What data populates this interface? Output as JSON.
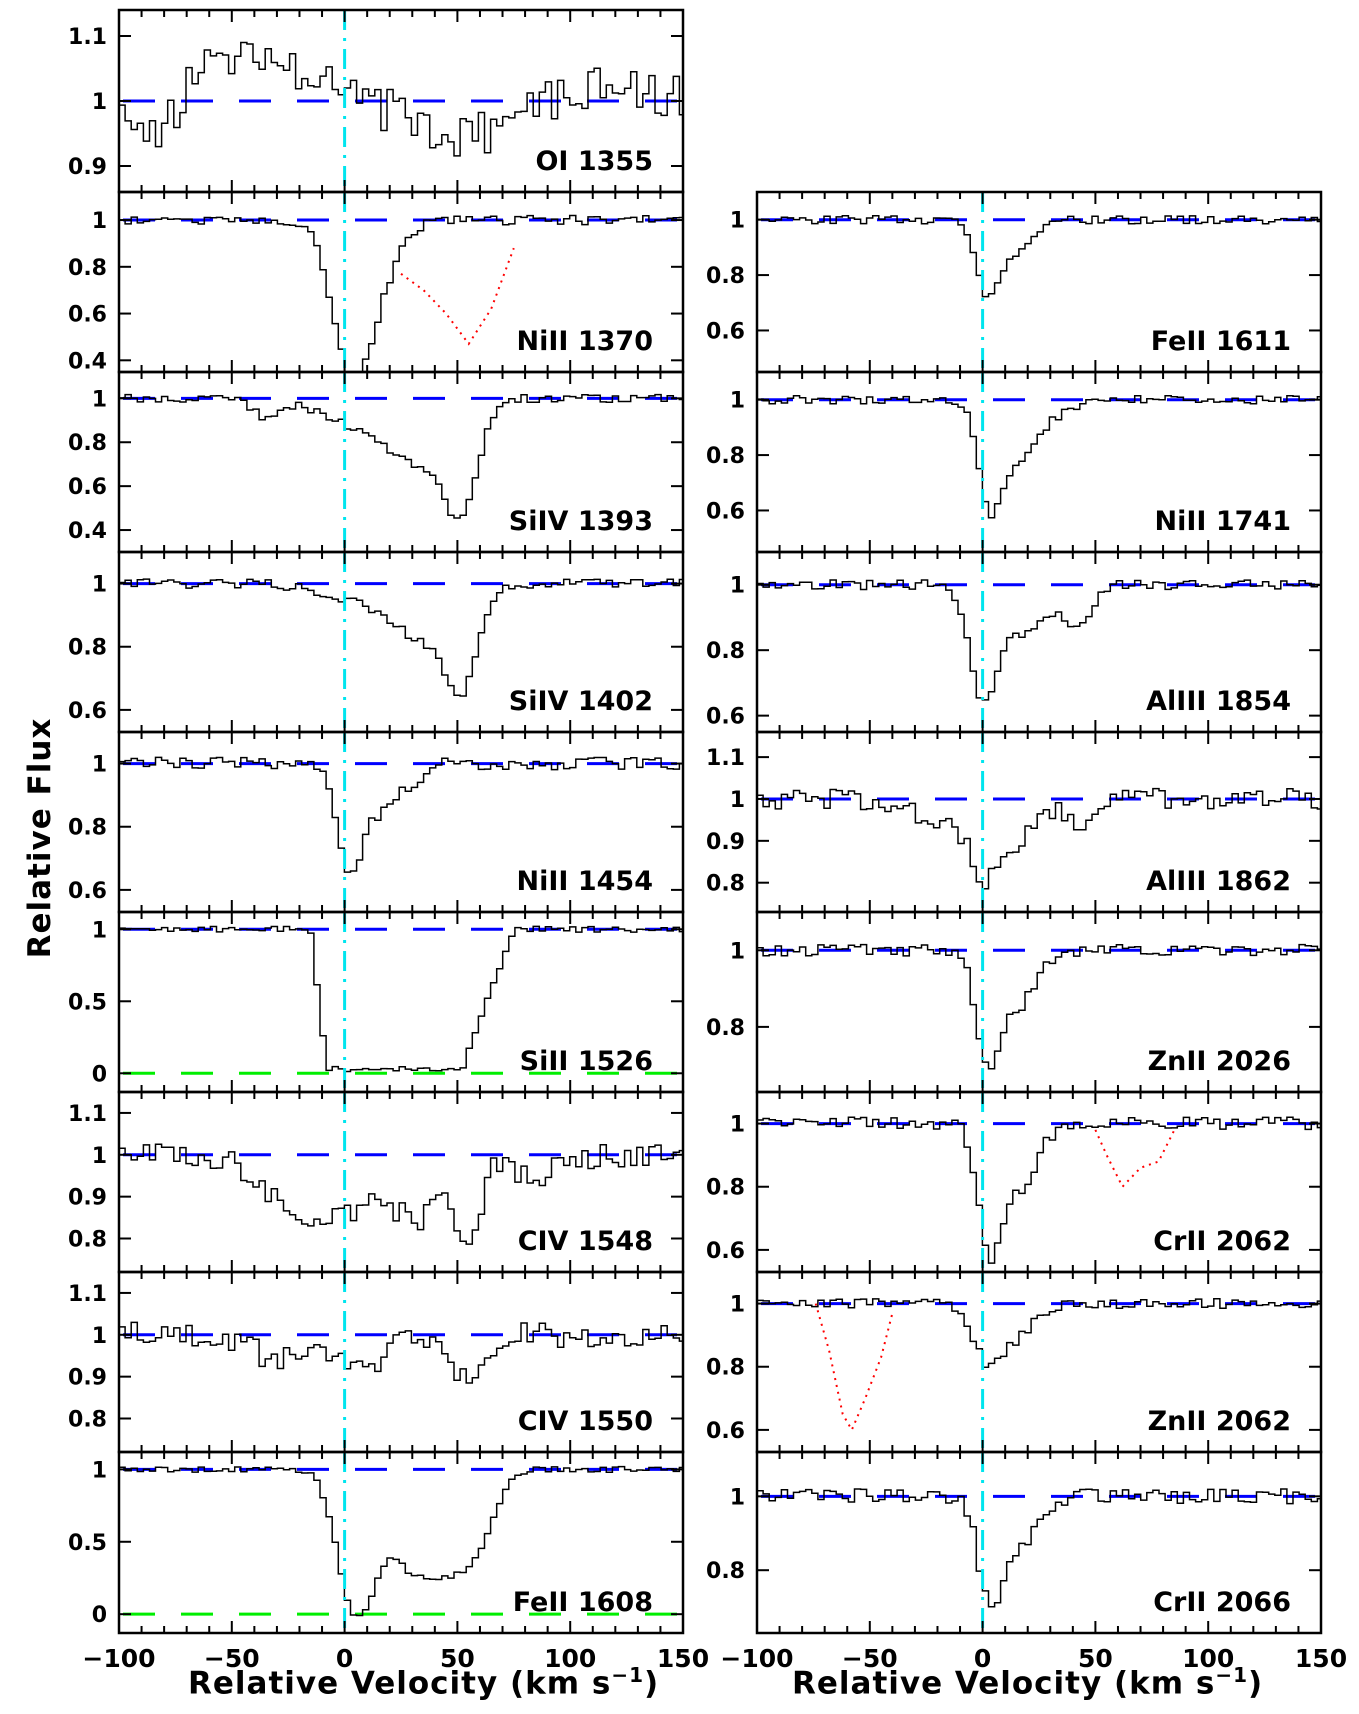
{
  "y_axis_label": "Relative Flux",
  "x_axis_label_text": "Relative Velocity (km s",
  "x_axis_label_exponent": "−1",
  "x_axis_label_close": ")",
  "colors": {
    "spectrum": "#000000",
    "continuum": "#0000ff",
    "zero_level": "#00ee00",
    "line_center": "#00e5ee",
    "blend": "#ff0000"
  },
  "chart_data": {
    "type": "line",
    "style": "histogram",
    "xlim": [
      -100,
      150
    ],
    "xticks": [
      "−100",
      "−50",
      "0",
      "50",
      "100",
      "150"
    ],
    "line_center_velocity": 0,
    "columns": [
      [
        {
          "label": "OI 1355",
          "ylim": [
            0.86,
            1.14
          ],
          "ticks": [
            0.9,
            1,
            1.1
          ],
          "tick_labels": [
            "0.9",
            "1",
            "1.1"
          ],
          "noise": 0.035,
          "components": [],
          "shape": [
            [
              -80,
              -0.05
            ],
            [
              -65,
              0.05
            ],
            [
              -40,
              0.07
            ],
            [
              -30,
              0.05
            ],
            [
              55,
              -0.06
            ],
            [
              120,
              0.04
            ]
          ]
        },
        {
          "label": "NiII 1370",
          "ylim": [
            0.35,
            1.12
          ],
          "ticks": [
            0.4,
            0.6,
            0.8,
            1
          ],
          "tick_labels": [
            "0.4",
            "0.6",
            "0.8",
            "1"
          ],
          "noise": 0.02,
          "components": [
            [
              2,
              0.48,
              8
            ],
            [
              12,
              0.3,
              10
            ]
          ],
          "blend": [
            [
              25,
              0.77
            ],
            [
              35,
              0.7
            ],
            [
              45,
              0.6
            ],
            [
              55,
              0.47
            ],
            [
              65,
              0.62
            ],
            [
              75,
              0.88
            ]
          ]
        },
        {
          "label": "SiIV 1393",
          "ylim": [
            0.3,
            1.12
          ],
          "ticks": [
            0.4,
            0.6,
            0.8,
            1
          ],
          "tick_labels": [
            "0.4",
            "0.6",
            "0.8",
            "1"
          ],
          "noise": 0.018,
          "components": [
            [
              -35,
              0.08,
              6
            ],
            [
              15,
              0.15,
              20
            ],
            [
              35,
              0.2,
              12
            ],
            [
              52,
              0.45,
              7
            ]
          ]
        },
        {
          "label": "SiIV 1402",
          "ylim": [
            0.53,
            1.1
          ],
          "ticks": [
            0.6,
            0.8,
            1
          ],
          "tick_labels": [
            "0.6",
            "0.8",
            "1"
          ],
          "noise": 0.015,
          "components": [
            [
              20,
              0.08,
              20
            ],
            [
              38,
              0.12,
              12
            ],
            [
              52,
              0.27,
              7
            ]
          ]
        },
        {
          "label": "NiII 1454",
          "ylim": [
            0.53,
            1.1
          ],
          "ticks": [
            0.6,
            0.8,
            1
          ],
          "tick_labels": [
            "0.6",
            "0.8",
            "1"
          ],
          "noise": 0.02,
          "components": [
            [
              2,
              0.3,
              5
            ],
            [
              14,
              0.15,
              8
            ],
            [
              30,
              0.05,
              6
            ]
          ]
        },
        {
          "label": "SiII 1526",
          "ylim": [
            -0.13,
            1.12
          ],
          "ticks": [
            0,
            0.5,
            1
          ],
          "tick_labels": [
            "0",
            "0.5",
            "1"
          ],
          "zero_line": true,
          "noise": 0.02,
          "flat_bottom": [
            -8,
            52,
            0.03
          ],
          "wings": [
            [
              -15,
              -8
            ],
            [
              52,
              75
            ]
          ]
        },
        {
          "label": "CIV 1548",
          "ylim": [
            0.72,
            1.15
          ],
          "ticks": [
            0.8,
            0.9,
            1,
            1.1
          ],
          "tick_labels": [
            "0.8",
            "0.9",
            "1",
            "1.1"
          ],
          "noise": 0.03,
          "components": [
            [
              -20,
              0.12,
              15
            ],
            [
              10,
              0.1,
              20
            ],
            [
              35,
              0.1,
              10
            ],
            [
              55,
              0.2,
              5
            ],
            [
              85,
              0.05,
              10
            ]
          ]
        },
        {
          "label": "CIV 1550",
          "ylim": [
            0.72,
            1.15
          ],
          "ticks": [
            0.8,
            0.9,
            1,
            1.1
          ],
          "tick_labels": [
            "0.8",
            "0.9",
            "1",
            "1.1"
          ],
          "noise": 0.03,
          "components": [
            [
              -30,
              0.06,
              10
            ],
            [
              5,
              0.08,
              12
            ],
            [
              55,
              0.12,
              6
            ]
          ]
        },
        {
          "label": "FeII 1608",
          "ylim": [
            -0.13,
            1.12
          ],
          "ticks": [
            0,
            0.5,
            1
          ],
          "tick_labels": [
            "0",
            "0.5",
            "1"
          ],
          "zero_line": true,
          "noise": 0.02,
          "components": [
            [
              5,
              0.95,
              8
            ],
            [
              30,
              0.65,
              12
            ],
            [
              50,
              0.45,
              10
            ],
            [
              60,
              0.25,
              8
            ]
          ]
        }
      ],
      [
        {
          "label": "FeII 1611",
          "ylim": [
            0.45,
            1.1
          ],
          "ticks": [
            0.6,
            0.8,
            1
          ],
          "tick_labels": [
            "0.6",
            "0.8",
            "1"
          ],
          "noise": 0.015,
          "components": [
            [
              2,
              0.2,
              5
            ],
            [
              12,
              0.12,
              10
            ]
          ]
        },
        {
          "label": "NiII 1741",
          "ylim": [
            0.45,
            1.1
          ],
          "ticks": [
            0.6,
            0.8,
            1
          ],
          "tick_labels": [
            "0.6",
            "0.8",
            "1"
          ],
          "noise": 0.015,
          "components": [
            [
              3,
              0.35,
              5
            ],
            [
              15,
              0.2,
              8
            ],
            [
              30,
              0.05,
              10
            ]
          ]
        },
        {
          "label": "AlIII 1854",
          "ylim": [
            0.55,
            1.1
          ],
          "ticks": [
            0.6,
            0.8,
            1
          ],
          "tick_labels": [
            "0.6",
            "0.8",
            "1"
          ],
          "noise": 0.015,
          "components": [
            [
              0,
              0.32,
              6
            ],
            [
              18,
              0.15,
              10
            ],
            [
              43,
              0.13,
              6
            ]
          ]
        },
        {
          "label": "AlIII 1862",
          "ylim": [
            0.73,
            1.16
          ],
          "ticks": [
            0.8,
            0.9,
            1,
            1.1
          ],
          "tick_labels": [
            "0.8",
            "0.9",
            "1",
            "1.1"
          ],
          "noise": 0.025,
          "components": [
            [
              -20,
              0.06,
              10
            ],
            [
              0,
              0.17,
              6
            ],
            [
              15,
              0.1,
              8
            ],
            [
              43,
              0.07,
              6
            ]
          ]
        },
        {
          "label": "ZnII 2026",
          "ylim": [
            0.63,
            1.1
          ],
          "ticks": [
            0.8,
            1
          ],
          "tick_labels": [
            "0.8",
            "1"
          ],
          "noise": 0.015,
          "components": [
            [
              2,
              0.27,
              5
            ],
            [
              15,
              0.15,
              8
            ]
          ]
        },
        {
          "label": "CrII 2062",
          "ylim": [
            0.53,
            1.1
          ],
          "ticks": [
            0.6,
            0.8,
            1
          ],
          "tick_labels": [
            "0.6",
            "0.8",
            "1"
          ],
          "noise": 0.02,
          "components": [
            [
              3,
              0.37,
              5
            ],
            [
              16,
              0.2,
              8
            ]
          ],
          "blend": [
            [
              50,
              0.98
            ],
            [
              55,
              0.9
            ],
            [
              62,
              0.8
            ],
            [
              70,
              0.86
            ],
            [
              78,
              0.88
            ],
            [
              85,
              0.98
            ]
          ]
        },
        {
          "label": "ZnII 2062",
          "ylim": [
            0.53,
            1.1
          ],
          "ticks": [
            0.6,
            0.8,
            1
          ],
          "tick_labels": [
            "0.6",
            "0.8",
            "1"
          ],
          "noise": 0.015,
          "components": [
            [
              2,
              0.17,
              6
            ],
            [
              15,
              0.1,
              8
            ]
          ],
          "blend": [
            [
              -74,
              1.0
            ],
            [
              -68,
              0.85
            ],
            [
              -62,
              0.65
            ],
            [
              -58,
              0.6
            ],
            [
              -52,
              0.7
            ],
            [
              -45,
              0.83
            ],
            [
              -40,
              0.97
            ]
          ]
        },
        {
          "label": "CrII 2066",
          "ylim": [
            0.63,
            1.12
          ],
          "ticks": [
            0.8,
            1
          ],
          "tick_labels": [
            "0.8",
            "1"
          ],
          "noise": 0.02,
          "components": [
            [
              3,
              0.26,
              5
            ],
            [
              16,
              0.14,
              8
            ]
          ]
        }
      ]
    ]
  }
}
